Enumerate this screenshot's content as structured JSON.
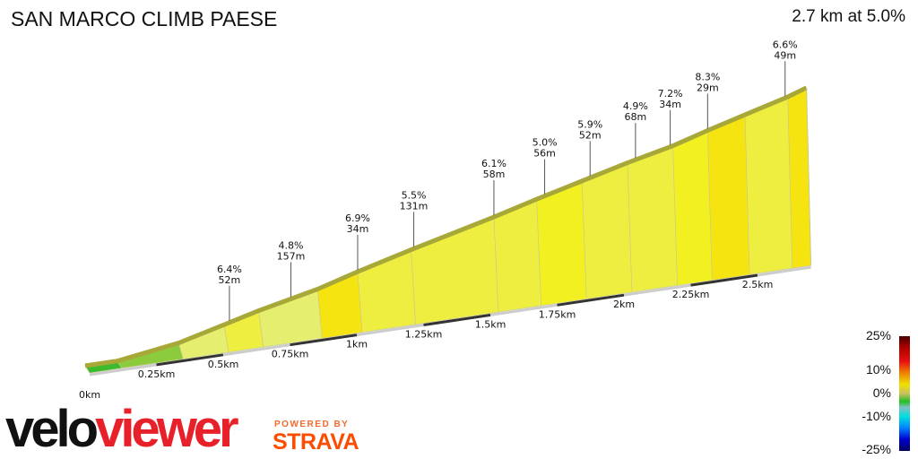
{
  "header": {
    "title": "SAN MARCO CLIMB PAESE",
    "summary": "2.7 km at 5.0%"
  },
  "chart_data": {
    "type": "area",
    "title": "SAN MARCO CLIMB PAESE",
    "xlabel": "",
    "ylabel": "",
    "x_unit": "km",
    "xlim": [
      0,
      2.7
    ],
    "x_ticks": [
      "0km",
      "0.25km",
      "0.5km",
      "0.75km",
      "1km",
      "1.25km",
      "1.5km",
      "1.75km",
      "2km",
      "2.25km",
      "2.5km"
    ],
    "profile": {
      "distance_km": [
        0,
        0.12,
        0.35,
        0.52,
        0.65,
        0.87,
        1.02,
        1.22,
        1.53,
        1.69,
        1.86,
        2.03,
        2.2,
        2.33,
        2.47,
        2.63,
        2.7
      ],
      "elevation_gain_m": [
        0,
        0,
        7,
        16,
        23,
        33,
        42,
        53,
        69,
        78,
        87,
        96,
        104,
        112,
        120,
        129,
        134
      ],
      "segment_grade_pct": [
        0,
        2.5,
        4.5,
        5.5,
        4.5,
        6.4,
        5.5,
        5.1,
        5.5,
        5.6,
        5.3,
        5,
        6.3,
        6.5,
        5.4,
        6.6
      ]
    },
    "annotations": [
      {
        "distance_km": 0.54,
        "grade": "6.4%",
        "length": "52m"
      },
      {
        "distance_km": 0.77,
        "grade": "4.8%",
        "length": "157m"
      },
      {
        "distance_km": 1.02,
        "grade": "6.9%",
        "length": "34m"
      },
      {
        "distance_km": 1.23,
        "grade": "5.5%",
        "length": "131m"
      },
      {
        "distance_km": 1.53,
        "grade": "6.1%",
        "length": "58m"
      },
      {
        "distance_km": 1.72,
        "grade": "5.0%",
        "length": "56m"
      },
      {
        "distance_km": 1.89,
        "grade": "5.9%",
        "length": "52m"
      },
      {
        "distance_km": 2.06,
        "grade": "4.9%",
        "length": "68m"
      },
      {
        "distance_km": 2.19,
        "grade": "7.2%",
        "length": "34m"
      },
      {
        "distance_km": 2.33,
        "grade": "8.3%",
        "length": "29m"
      },
      {
        "distance_km": 2.62,
        "grade": "6.6%",
        "length": "49m"
      }
    ],
    "legend": {
      "labels": [
        "25%",
        "10%",
        "0%",
        "-10%",
        "-25%"
      ],
      "placement": "bottom-right",
      "colors": [
        "#4a0000",
        "#e81010",
        "#f0e000",
        "#20c020",
        "#00e0e0",
        "#0000d0",
        "#000060"
      ]
    },
    "grid": false
  },
  "branding": {
    "logo_velo": "velo",
    "logo_viewer": "viewer",
    "powered_by": "POWERED BY",
    "strava": "STRAVA"
  }
}
